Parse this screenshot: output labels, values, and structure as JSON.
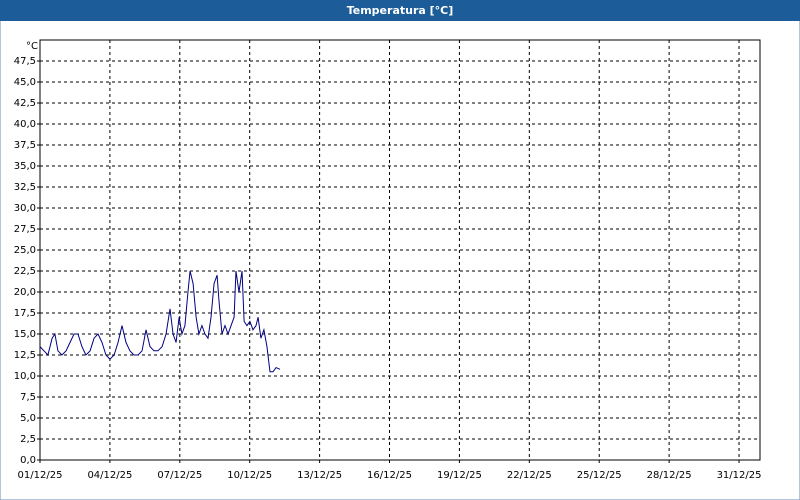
{
  "chart_data": {
    "type": "line",
    "title": "Temperatura [°C]",
    "y_unit": "°C",
    "x": [
      0,
      0.17,
      0.34,
      0.52,
      0.64,
      0.77,
      0.94,
      1.12,
      1.29,
      1.46,
      1.63,
      1.8,
      1.97,
      2.15,
      2.32,
      2.49,
      2.66,
      2.83,
      3.0,
      3.18,
      3.35,
      3.52,
      3.69,
      3.86,
      4.03,
      4.21,
      4.38,
      4.55,
      4.72,
      4.89,
      5.06,
      5.24,
      5.41,
      5.58,
      5.71,
      5.84,
      5.97,
      6.09,
      6.22,
      6.35,
      6.44,
      6.57,
      6.7,
      6.82,
      6.95,
      7.08,
      7.21,
      7.34,
      7.47,
      7.6,
      7.68,
      7.81,
      7.94,
      8.07,
      8.2,
      8.33,
      8.41,
      8.54,
      8.67,
      8.76,
      8.88,
      9.01,
      9.14,
      9.27,
      9.36,
      9.48,
      9.61,
      9.74,
      9.87,
      10.0,
      10.13,
      10.3
    ],
    "series": [
      {
        "color": "#000080",
        "values": [
          13.5,
          13,
          12.5,
          14.5,
          15,
          13,
          12.5,
          13,
          14,
          15,
          15,
          13.5,
          12.5,
          13,
          14.5,
          15,
          14,
          12.5,
          12,
          12.5,
          14,
          16,
          14,
          13,
          12.5,
          12.5,
          13,
          15.5,
          13.5,
          13,
          13,
          13.5,
          15,
          18,
          15,
          14,
          17,
          15,
          16,
          20,
          22.5,
          21,
          17,
          15,
          16,
          15,
          14.5,
          17,
          21,
          22,
          19,
          15,
          16,
          15,
          16,
          17,
          22.5,
          20,
          22.5,
          16.5,
          16,
          16.5,
          15.5,
          16,
          17,
          14.5,
          15.5,
          13.5,
          10.5,
          10.5,
          11,
          10.8
        ]
      }
    ],
    "xlim": [
      0,
      30.9
    ],
    "xticks": [
      {
        "value": 0,
        "label": "01/12/25"
      },
      {
        "value": 3,
        "label": "04/12/25"
      },
      {
        "value": 6,
        "label": "07/12/25"
      },
      {
        "value": 9,
        "label": "10/12/25"
      },
      {
        "value": 12,
        "label": "13/12/25"
      },
      {
        "value": 15,
        "label": "16/12/25"
      },
      {
        "value": 18,
        "label": "19/12/25"
      },
      {
        "value": 21,
        "label": "22/12/25"
      },
      {
        "value": 24,
        "label": "25/12/25"
      },
      {
        "value": 27,
        "label": "28/12/25"
      },
      {
        "value": 30,
        "label": "31/12/25"
      }
    ],
    "ylim": [
      0,
      50
    ],
    "yticks": [
      {
        "value": 0,
        "label": "0,0"
      },
      {
        "value": 2.5,
        "label": "2,5"
      },
      {
        "value": 5,
        "label": "5,0"
      },
      {
        "value": 7.5,
        "label": "7,5"
      },
      {
        "value": 10,
        "label": "10,0"
      },
      {
        "value": 12.5,
        "label": "12,5"
      },
      {
        "value": 15,
        "label": "15,0"
      },
      {
        "value": 17.5,
        "label": "17,5"
      },
      {
        "value": 20,
        "label": "20,0"
      },
      {
        "value": 22.5,
        "label": "22,5"
      },
      {
        "value": 25,
        "label": "25,0"
      },
      {
        "value": 27.5,
        "label": "27,5"
      },
      {
        "value": 30,
        "label": "30,0"
      },
      {
        "value": 32.5,
        "label": "32,5"
      },
      {
        "value": 35,
        "label": "35,0"
      },
      {
        "value": 37.5,
        "label": "37,5"
      },
      {
        "value": 40,
        "label": "40,0"
      },
      {
        "value": 42.5,
        "label": "42,5"
      },
      {
        "value": 45,
        "label": "45,0"
      },
      {
        "value": 47.5,
        "label": "47,5"
      }
    ],
    "grid": true
  }
}
